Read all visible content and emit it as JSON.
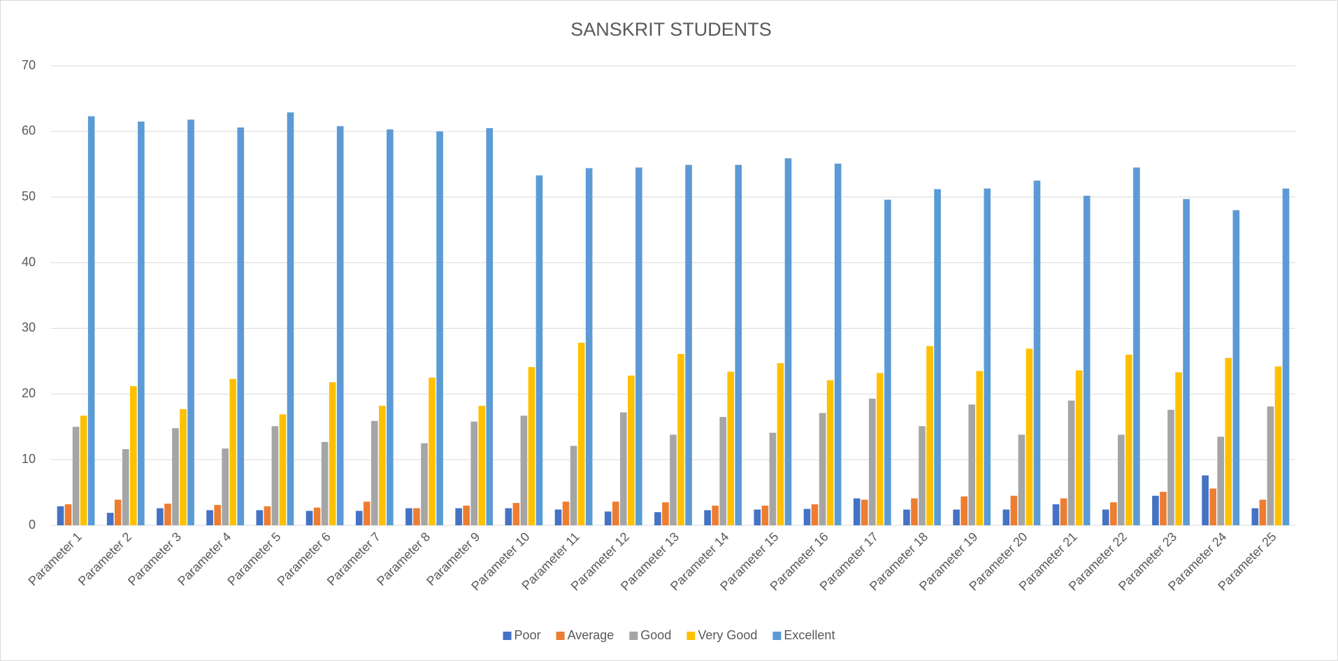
{
  "chart_data": {
    "type": "bar",
    "title": "SANSKRIT STUDENTS",
    "categories": [
      "Parameter 1",
      "Parameter 2",
      "Parameter 3",
      "Parameter 4",
      "Parameter 5",
      "Parameter 6",
      "Parameter 7",
      "Parameter 8",
      "Parameter 9",
      "Parameter 10",
      "Parameter 11",
      "Parameter 12",
      "Parameter 13",
      "Parameter 14",
      "Parameter 15",
      "Parameter 16",
      "Parameter 17",
      "Parameter 18",
      "Parameter 19",
      "Parameter 20",
      "Parameter 21",
      "Parameter 22",
      "Parameter 23",
      "Parameter 24",
      "Parameter 25"
    ],
    "series": [
      {
        "name": "Poor",
        "color": "#4472c4",
        "values": [
          2.9,
          1.9,
          2.6,
          2.3,
          2.3,
          2.2,
          2.2,
          2.6,
          2.6,
          2.6,
          2.4,
          2.1,
          2.0,
          2.3,
          2.4,
          2.5,
          4.1,
          2.4,
          2.4,
          2.4,
          3.2,
          2.4,
          4.5,
          7.6,
          2.6
        ]
      },
      {
        "name": "Average",
        "color": "#ed7d31",
        "values": [
          3.2,
          3.9,
          3.3,
          3.1,
          2.9,
          2.7,
          3.6,
          2.6,
          3.0,
          3.4,
          3.6,
          3.6,
          3.5,
          3.0,
          3.0,
          3.2,
          3.9,
          4.1,
          4.4,
          4.5,
          4.1,
          3.5,
          5.1,
          5.6,
          3.9
        ]
      },
      {
        "name": "Good",
        "color": "#a5a5a5",
        "values": [
          15.0,
          11.6,
          14.8,
          11.7,
          15.1,
          12.7,
          15.9,
          12.5,
          15.8,
          16.7,
          12.1,
          17.2,
          13.8,
          16.5,
          14.1,
          17.1,
          19.3,
          15.1,
          18.4,
          13.8,
          19.0,
          13.8,
          17.6,
          13.5,
          18.1
        ]
      },
      {
        "name": "Very Good",
        "color": "#ffc000",
        "values": [
          16.7,
          21.2,
          17.7,
          22.3,
          16.9,
          21.8,
          18.2,
          22.5,
          18.2,
          24.1,
          27.8,
          22.8,
          26.1,
          23.4,
          24.7,
          22.1,
          23.2,
          27.3,
          23.5,
          26.9,
          23.6,
          26.0,
          23.3,
          25.5,
          24.2
        ]
      },
      {
        "name": "Excellent",
        "color": "#5b9bd5",
        "values": [
          62.3,
          61.5,
          61.8,
          60.6,
          62.9,
          60.8,
          60.3,
          60.0,
          60.5,
          53.3,
          54.4,
          54.5,
          54.9,
          54.9,
          55.9,
          55.1,
          49.6,
          51.2,
          51.3,
          52.5,
          50.2,
          54.5,
          49.7,
          48.0,
          51.3
        ]
      }
    ],
    "ylim": [
      0,
      70
    ],
    "yticks": [
      0,
      10,
      20,
      30,
      40,
      50,
      60,
      70
    ],
    "grid": true,
    "legend": "bottom"
  }
}
